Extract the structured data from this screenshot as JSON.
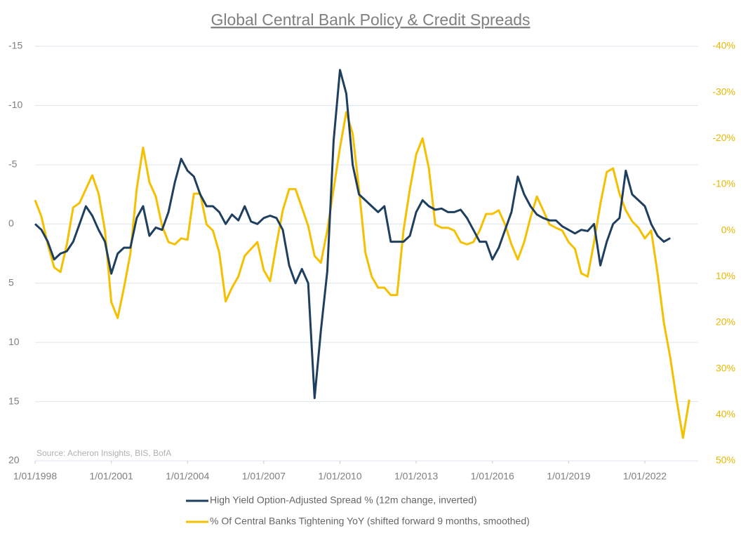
{
  "chart_data": {
    "type": "line",
    "title": "Global Central Bank Policy & Credit Spreads",
    "annotation": "Source: Acheron Insights, BIS, BofA",
    "inverted": true,
    "grid": true,
    "legend": "bottom",
    "xlim": [
      1998,
      2024.1
    ],
    "xticks": [
      {
        "value": 1998,
        "label": "1/01/1998"
      },
      {
        "value": 2001,
        "label": "1/01/2001"
      },
      {
        "value": 2004,
        "label": "1/01/2004"
      },
      {
        "value": 2007,
        "label": "1/01/2007"
      },
      {
        "value": 2010,
        "label": "1/01/2010"
      },
      {
        "value": 2013,
        "label": "1/01/2013"
      },
      {
        "value": 2016,
        "label": "1/01/2016"
      },
      {
        "value": 2019,
        "label": "1/01/2019"
      },
      {
        "value": 2022,
        "label": "1/01/2022"
      }
    ],
    "ylim": [
      -15,
      20
    ],
    "yticks": [
      -15,
      -10,
      -5,
      0,
      5,
      10,
      15,
      20
    ],
    "y2lim": [
      -40,
      50
    ],
    "y2ticks": [
      {
        "value": -40,
        "label": "-40%"
      },
      {
        "value": -30,
        "label": "-30%"
      },
      {
        "value": -20,
        "label": "-20%"
      },
      {
        "value": -10,
        "label": "-10%"
      },
      {
        "value": 0,
        "label": "0%"
      },
      {
        "value": 10,
        "label": "10%"
      },
      {
        "value": 20,
        "label": "20%"
      },
      {
        "value": 30,
        "label": "30%"
      },
      {
        "value": 40,
        "label": "40%"
      },
      {
        "value": 50,
        "label": "50%"
      }
    ],
    "x": [
      1998,
      1998.25,
      1998.5,
      1998.75,
      1999,
      1999.25,
      1999.5,
      1999.75,
      2000,
      2000.25,
      2000.5,
      2000.75,
      2001,
      2001.25,
      2001.5,
      2001.75,
      2002,
      2002.25,
      2002.5,
      2002.75,
      2003,
      2003.25,
      2003.5,
      2003.75,
      2004,
      2004.25,
      2004.5,
      2004.75,
      2005,
      2005.25,
      2005.5,
      2005.75,
      2006,
      2006.25,
      2006.5,
      2006.75,
      2007,
      2007.25,
      2007.5,
      2007.75,
      2008,
      2008.25,
      2008.5,
      2008.75,
      2009,
      2009.25,
      2009.5,
      2009.75,
      2010,
      2010.25,
      2010.5,
      2010.75,
      2011,
      2011.25,
      2011.5,
      2011.75,
      2012,
      2012.25,
      2012.5,
      2012.75,
      2013,
      2013.25,
      2013.5,
      2013.75,
      2014,
      2014.25,
      2014.5,
      2014.75,
      2015,
      2015.25,
      2015.5,
      2015.75,
      2016,
      2016.25,
      2016.5,
      2016.75,
      2017,
      2017.25,
      2017.5,
      2017.75,
      2018,
      2018.25,
      2018.5,
      2018.75,
      2019,
      2019.25,
      2019.5,
      2019.75,
      2020,
      2020.25,
      2020.5,
      2020.75,
      2021,
      2021.25,
      2021.5,
      2021.75,
      2022,
      2022.25,
      2022.5,
      2022.75,
      2023,
      2023.25,
      2023.5,
      2023.75
    ],
    "series": [
      {
        "name": "High Yield Option-Adjusted Spread % (12m change, inverted)",
        "color": "#1f3f5f",
        "axis": "y",
        "values": [
          0,
          0.5,
          1.5,
          3,
          2.5,
          2.3,
          1.5,
          0,
          -1.5,
          -0.7,
          0.5,
          1.5,
          4.2,
          2.5,
          2,
          2,
          -0.5,
          -1.5,
          1,
          0.3,
          0.5,
          -1,
          -3.5,
          -5.5,
          -4.5,
          -4,
          -2.5,
          -1.5,
          -1.5,
          -1,
          0,
          -0.8,
          -0.3,
          -1.5,
          -0.2,
          0,
          -0.5,
          -0.7,
          -0.5,
          0.5,
          3.5,
          5,
          3.8,
          5,
          14.7,
          9,
          4,
          -7,
          -13,
          -11,
          -5,
          -2.5,
          -2,
          -1.5,
          -1,
          -1.5,
          1.5,
          1.5,
          1.5,
          1,
          -1,
          -2,
          -1.5,
          -1.2,
          -1.3,
          -1,
          -1,
          -1.2,
          -0.5,
          0.5,
          1.5,
          1.5,
          3,
          2,
          0.5,
          -1,
          -4,
          -2.5,
          -1.5,
          -0.8,
          -0.5,
          -0.3,
          -0.3,
          0.2,
          0.5,
          0.8,
          0.5,
          0.6,
          0,
          3.5,
          1.5,
          0,
          -0.5,
          -4.5,
          -2.5,
          -2,
          -1.5,
          0,
          1,
          1.5,
          1.2,
          null,
          null,
          null
        ]
      },
      {
        "name": "% Of Central Banks Tightening YoY (shifted forward 9 months, smoothed)",
        "color": "#f5c000",
        "axis": "y2",
        "values": [
          -6.6,
          -3,
          3,
          8,
          9,
          3,
          -5,
          -6,
          -9,
          -12,
          -8,
          0,
          15.5,
          19,
          12.4,
          5,
          -9,
          -18,
          -10.5,
          -7.4,
          -1,
          2.5,
          3,
          1.7,
          2,
          -8,
          -8,
          -1.3,
          0,
          4.8,
          15.4,
          12.4,
          10,
          5.5,
          4,
          2.5,
          8.6,
          11,
          3,
          -4.4,
          -9,
          -9,
          -5,
          -1,
          5.5,
          7,
          0,
          -9,
          -18,
          -25.7,
          -21,
          -9,
          4.8,
          10,
          12.4,
          12.4,
          14,
          14,
          0,
          -9,
          -16.5,
          -20,
          -13.5,
          -1.3,
          -0.6,
          -0.6,
          0,
          2.5,
          3,
          2.5,
          0,
          -3.6,
          -3.6,
          -4.4,
          -1.3,
          3,
          6.3,
          2.5,
          -2.8,
          -7.4,
          -4.4,
          -1.3,
          -0.6,
          0,
          2.5,
          4,
          9.3,
          10,
          2.5,
          -5.8,
          -12.7,
          -13.5,
          -8,
          -4.4,
          -2,
          -0.6,
          1.7,
          0,
          9.3,
          20,
          27.6,
          36.7,
          45,
          36.7
        ]
      }
    ]
  }
}
